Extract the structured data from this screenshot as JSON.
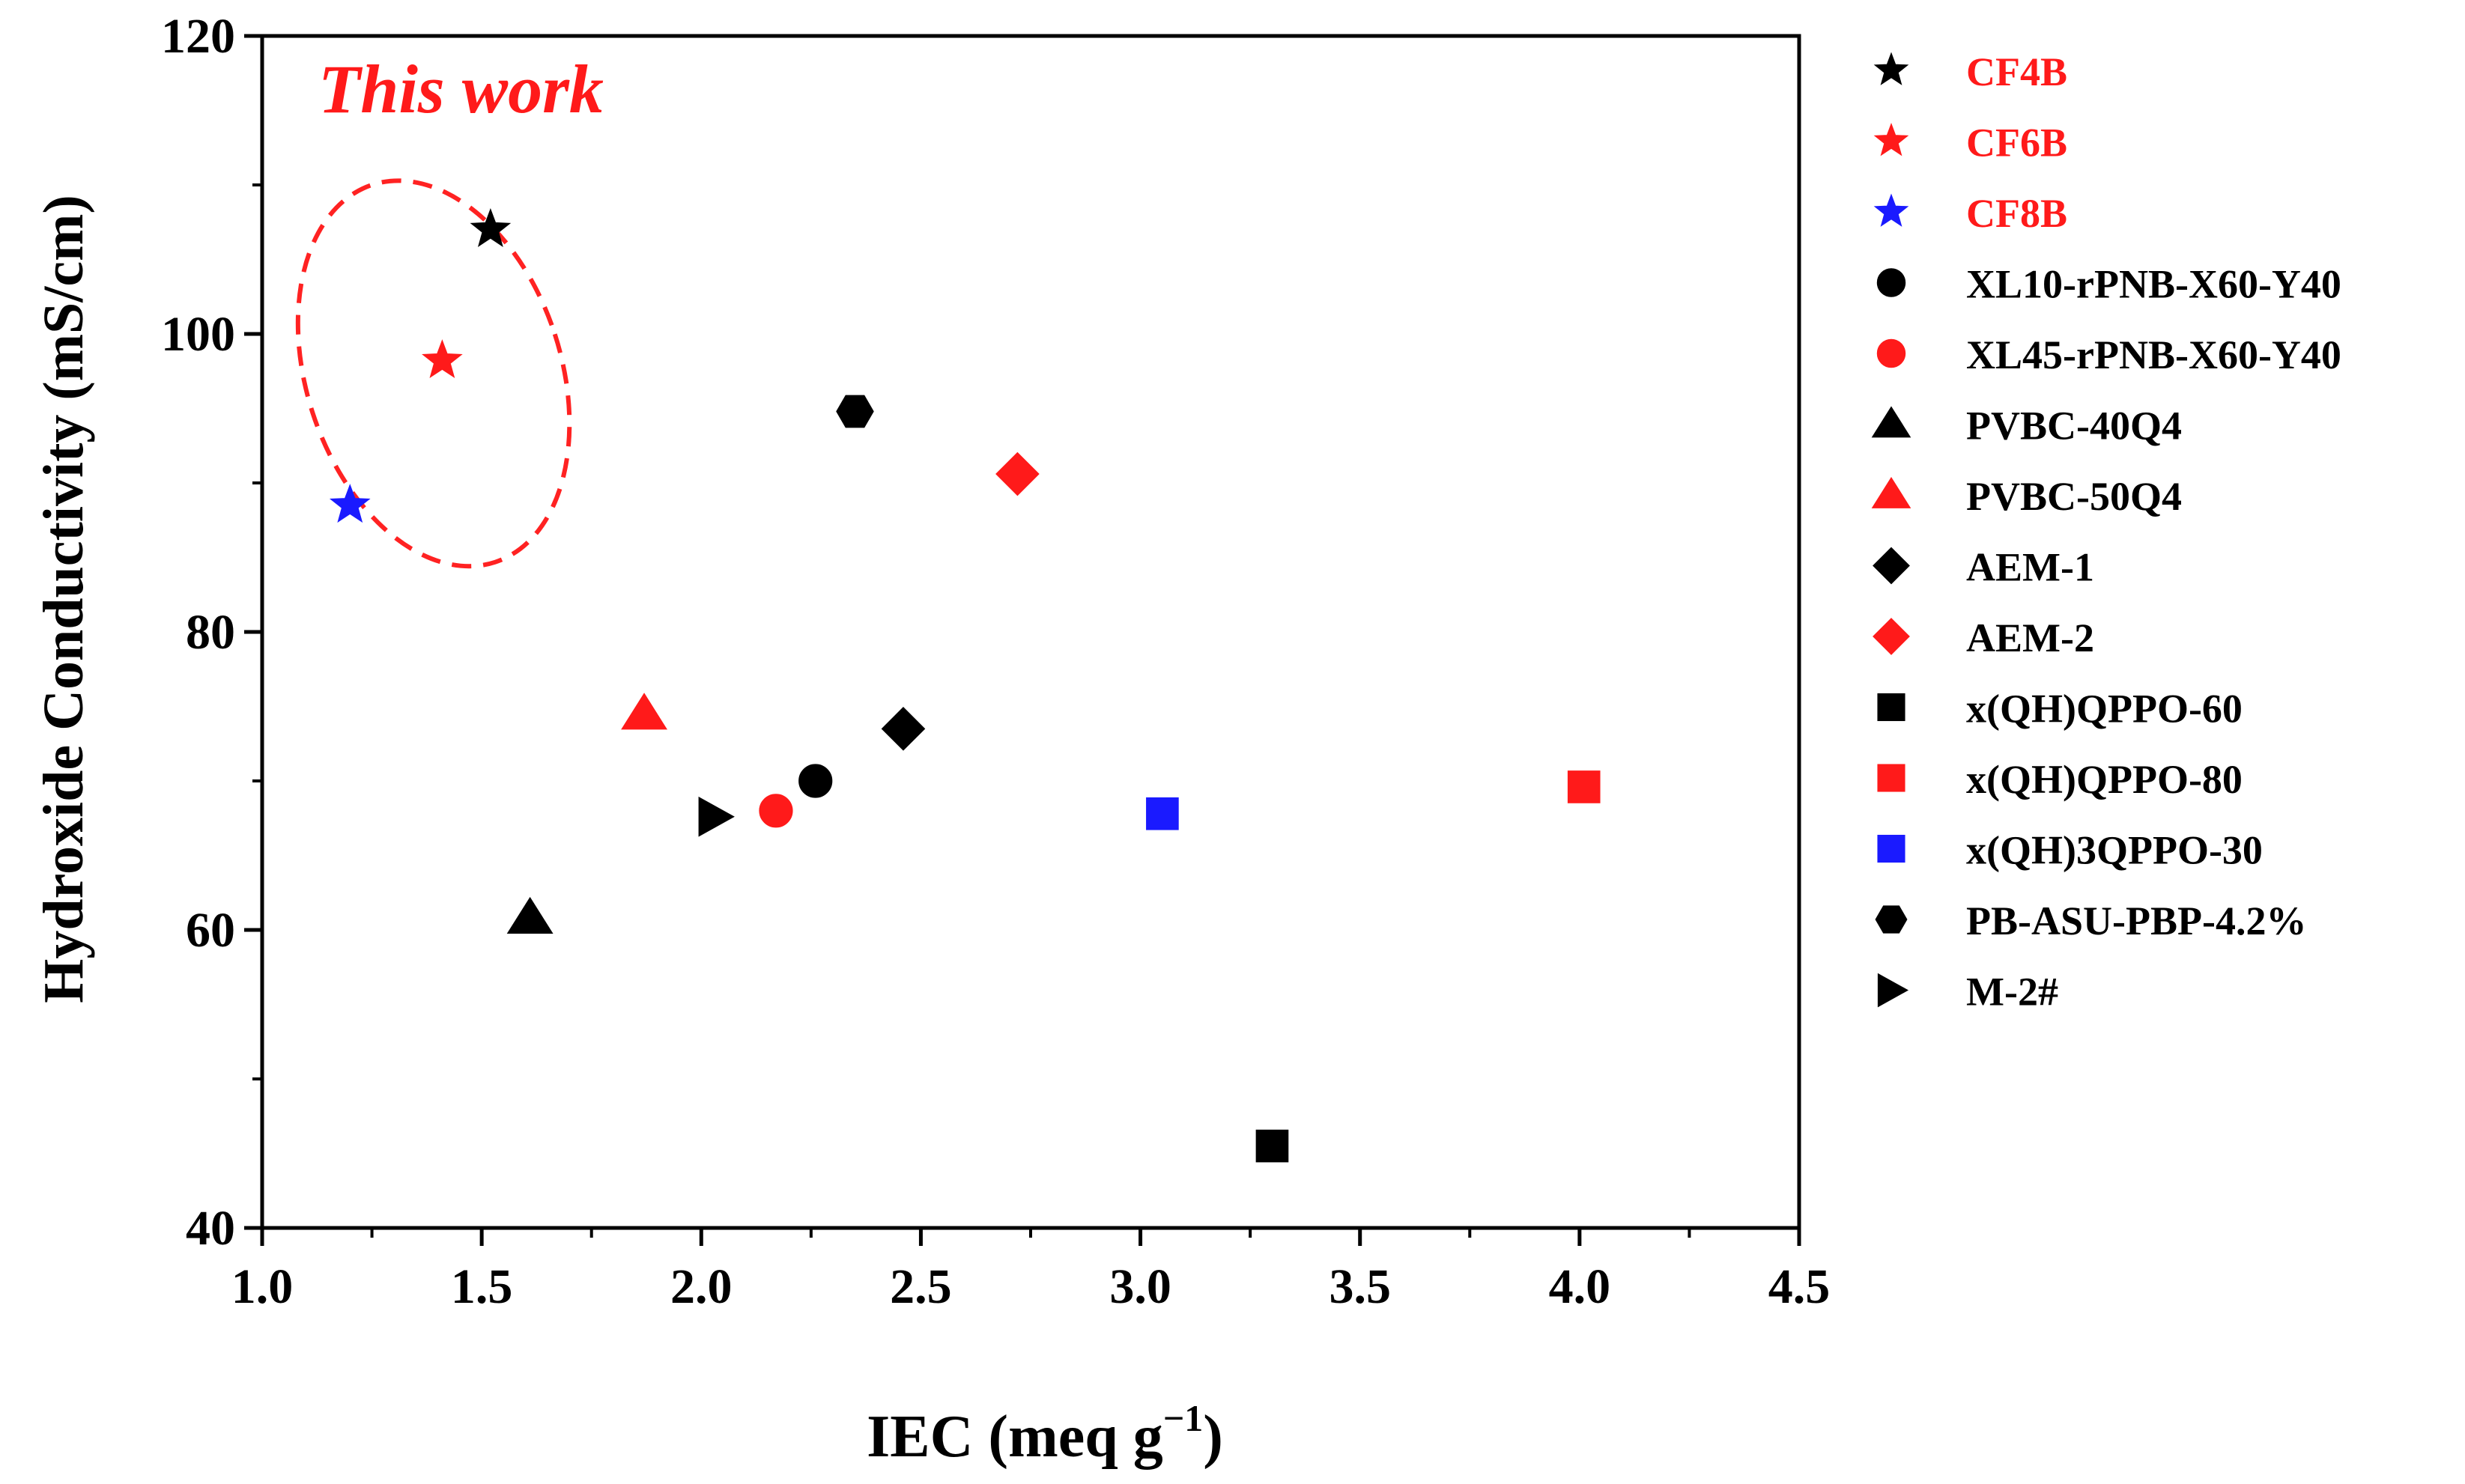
{
  "chart_data": {
    "type": "scatter",
    "title": "",
    "xlabel": "IEC (meq g",
    "xlabel_sup": "−1",
    "xlabel_tail": ")",
    "ylabel": "Hydroxide Conductivity (mS/cm)",
    "xlim": [
      1.0,
      4.5
    ],
    "ylim": [
      40,
      120
    ],
    "x_ticks": [
      1.0,
      1.5,
      2.0,
      2.5,
      3.0,
      3.5,
      4.0,
      4.5
    ],
    "x_tick_labels": [
      "1.0",
      "1.5",
      "2.0",
      "2.5",
      "3.0",
      "3.5",
      "4.0",
      "4.5"
    ],
    "y_ticks": [
      40,
      60,
      80,
      100,
      120
    ],
    "y_tick_labels": [
      "40",
      "60",
      "80",
      "100",
      "120"
    ],
    "grid": false,
    "legend_position": "outside-right",
    "annotation": {
      "text": "This work",
      "color": "#ff1a1a",
      "highlight_color": "#ff2222"
    },
    "series": [
      {
        "name": "CF4B",
        "marker": "star",
        "color": "#000000",
        "label_color": "#ff1a1a",
        "x": 1.52,
        "y": 107.0
      },
      {
        "name": "CF6B",
        "marker": "star",
        "color": "#ff1a1a",
        "label_color": "#ff1a1a",
        "x": 1.41,
        "y": 98.2
      },
      {
        "name": "CF8B",
        "marker": "star",
        "color": "#1a1aff",
        "label_color": "#ff1a1a",
        "x": 1.2,
        "y": 88.5
      },
      {
        "name": "XL10-rPNB-X60-Y40",
        "marker": "circle",
        "color": "#000000",
        "label_color": "#000000",
        "x": 2.26,
        "y": 70.0
      },
      {
        "name": "XL45-rPNB-X60-Y40",
        "marker": "circle",
        "color": "#ff1a1a",
        "label_color": "#000000",
        "x": 2.17,
        "y": 68.0
      },
      {
        "name": "PVBC-40Q4",
        "marker": "triangle",
        "color": "#000000",
        "label_color": "#000000",
        "x": 1.61,
        "y": 60.8
      },
      {
        "name": "PVBC-50Q4",
        "marker": "triangle",
        "color": "#ff1a1a",
        "label_color": "#000000",
        "x": 1.87,
        "y": 74.5
      },
      {
        "name": "AEM-1",
        "marker": "diamond",
        "color": "#000000",
        "label_color": "#000000",
        "x": 2.46,
        "y": 73.5
      },
      {
        "name": "AEM-2",
        "marker": "diamond",
        "color": "#ff1a1a",
        "label_color": "#000000",
        "x": 2.72,
        "y": 90.6
      },
      {
        "name": "x(QH)QPPO-60",
        "marker": "square",
        "color": "#000000",
        "label_color": "#000000",
        "x": 3.3,
        "y": 45.5
      },
      {
        "name": "x(QH)QPPO-80",
        "marker": "square",
        "color": "#ff1a1a",
        "label_color": "#000000",
        "x": 4.01,
        "y": 69.6
      },
      {
        "name": "x(QH)3QPPO-30",
        "marker": "square",
        "color": "#1a1aff",
        "label_color": "#000000",
        "x": 3.05,
        "y": 67.8
      },
      {
        "name": "PB-ASU-PBP-4.2%",
        "marker": "hexagon",
        "color": "#000000",
        "label_color": "#000000",
        "x": 2.35,
        "y": 94.8
      },
      {
        "name": "M-2#",
        "marker": "right-triangle",
        "color": "#000000",
        "label_color": "#000000",
        "x": 2.03,
        "y": 67.6
      }
    ]
  }
}
